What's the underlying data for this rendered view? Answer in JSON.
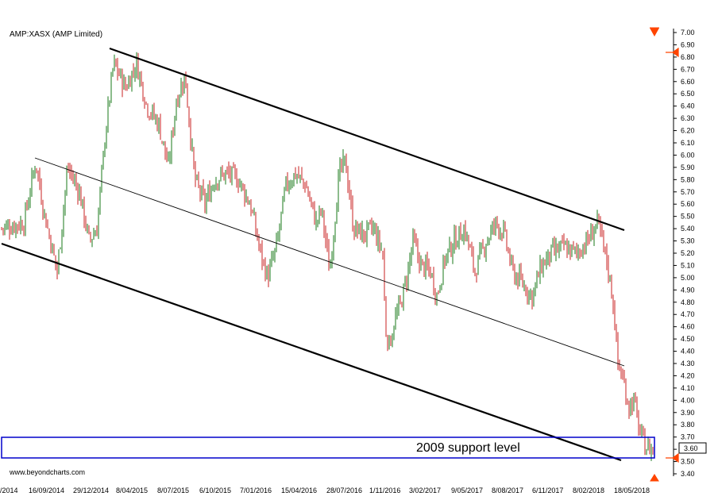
{
  "header": {
    "ticker": "AMP:XASX (AMP Limited)"
  },
  "footer": {
    "website": "www.beyondcharts.com"
  },
  "colors": {
    "up": "#1a7a1a",
    "down": "#c82020",
    "channel": "#000000",
    "support_box": "#0000cc",
    "marker": "#ff4400"
  },
  "chart_data": {
    "type": "candlestick",
    "title": "AMP:XASX (AMP Limited)",
    "ylim": [
      3.4,
      7.0
    ],
    "y_ticks": [
      "7.00",
      "6.90",
      "6.80",
      "6.70",
      "6.60",
      "6.50",
      "6.40",
      "6.30",
      "6.20",
      "6.10",
      "6.00",
      "5.90",
      "5.80",
      "5.70",
      "5.60",
      "5.50",
      "5.40",
      "5.30",
      "5.20",
      "5.10",
      "5.00",
      "4.90",
      "4.80",
      "4.70",
      "4.60",
      "4.50",
      "4.40",
      "4.30",
      "4.20",
      "4.10",
      "4.00",
      "3.90",
      "3.80",
      "3.70",
      "3.60",
      "3.50",
      "3.40"
    ],
    "x_ticks": [
      "/2014",
      "16/09/2014",
      "29/12/2014",
      "8/04/2015",
      "8/07/2015",
      "6/10/2015",
      "7/01/2016",
      "15/04/2016",
      "28/07/2016",
      "1/11/2016",
      "3/02/2017",
      "9/05/2017",
      "8/08/2017",
      "6/11/2017",
      "8/02/2018",
      "18/05/2018"
    ],
    "last_price": "3.60",
    "price_path": [
      [
        0,
        5.4
      ],
      [
        30,
        5.45
      ],
      [
        45,
        5.95
      ],
      [
        55,
        5.55
      ],
      [
        72,
        5.05
      ],
      [
        85,
        5.9
      ],
      [
        100,
        5.7
      ],
      [
        112,
        5.3
      ],
      [
        122,
        5.4
      ],
      [
        133,
        6.2
      ],
      [
        143,
        6.75
      ],
      [
        158,
        6.55
      ],
      [
        172,
        6.75
      ],
      [
        185,
        6.4
      ],
      [
        200,
        6.25
      ],
      [
        212,
        5.9
      ],
      [
        222,
        6.45
      ],
      [
        233,
        6.65
      ],
      [
        245,
        5.8
      ],
      [
        258,
        5.6
      ],
      [
        270,
        5.8
      ],
      [
        285,
        5.85
      ],
      [
        300,
        5.8
      ],
      [
        315,
        5.6
      ],
      [
        328,
        5.2
      ],
      [
        337,
        5.0
      ],
      [
        348,
        5.25
      ],
      [
        360,
        5.75
      ],
      [
        372,
        5.85
      ],
      [
        385,
        5.75
      ],
      [
        398,
        5.45
      ],
      [
        405,
        5.55
      ],
      [
        415,
        5.05
      ],
      [
        427,
        5.85
      ],
      [
        435,
        5.95
      ],
      [
        445,
        5.4
      ],
      [
        458,
        5.35
      ],
      [
        470,
        5.4
      ],
      [
        482,
        5.2
      ],
      [
        485,
        4.6
      ],
      [
        490,
        4.45
      ],
      [
        497,
        4.65
      ],
      [
        505,
        4.8
      ],
      [
        512,
        5.0
      ],
      [
        520,
        5.3
      ],
      [
        530,
        5.1
      ],
      [
        542,
        5.05
      ],
      [
        550,
        4.85
      ],
      [
        560,
        5.15
      ],
      [
        572,
        5.3
      ],
      [
        585,
        5.4
      ],
      [
        598,
        5.05
      ],
      [
        612,
        5.3
      ],
      [
        625,
        5.45
      ],
      [
        635,
        5.35
      ],
      [
        645,
        5.05
      ],
      [
        658,
        4.95
      ],
      [
        670,
        4.85
      ],
      [
        682,
        5.1
      ],
      [
        695,
        5.2
      ],
      [
        710,
        5.25
      ],
      [
        725,
        5.2
      ],
      [
        740,
        5.3
      ],
      [
        752,
        5.45
      ],
      [
        758,
        5.3
      ],
      [
        765,
        5.1
      ],
      [
        772,
        4.8
      ],
      [
        778,
        4.3
      ],
      [
        785,
        4.15
      ],
      [
        792,
        3.95
      ],
      [
        798,
        4.0
      ],
      [
        805,
        3.75
      ],
      [
        812,
        3.63
      ],
      [
        820,
        3.6
      ]
    ],
    "channel_lines": [
      {
        "name": "upper",
        "from": {
          "date": "2015-03-04",
          "value": 6.88
        },
        "to": {
          "date": "2018-06-01",
          "value": 5.4
        }
      },
      {
        "name": "middle",
        "from": {
          "date": "2014-09-01",
          "value": 5.98
        },
        "to": {
          "date": "2018-06-01",
          "value": 4.28
        }
      },
      {
        "name": "lower",
        "from": {
          "date": "2014-06-01",
          "value": 5.27
        },
        "to": {
          "date": "2018-05-15",
          "value": 3.53
        }
      }
    ],
    "annotations": [
      {
        "text": "2009 support level",
        "y_range": [
          3.54,
          3.7
        ]
      }
    ]
  }
}
